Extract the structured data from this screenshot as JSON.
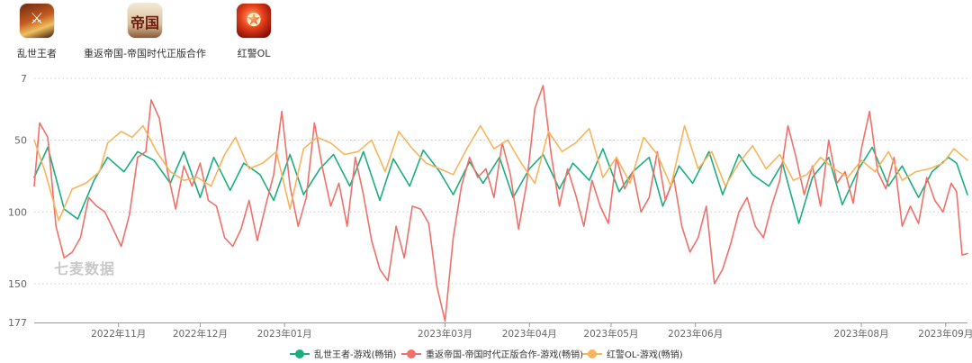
{
  "apps": [
    {
      "name": "乱世王者",
      "icon": "luanshi-wangzhe-app-icon"
    },
    {
      "name": "重返帝国-帝国时代正版合作",
      "icon": "chongfan-diguo-app-icon",
      "icon_text": "帝国"
    },
    {
      "name": "红警OL",
      "icon": "hongjing-ol-app-icon"
    }
  ],
  "watermark": "七麦数据",
  "chart_data": {
    "type": "line",
    "y_inverted": true,
    "ylim": [
      7,
      177
    ],
    "yticks": [
      7,
      50,
      100,
      150,
      177
    ],
    "xlim": [
      "2022-10-01",
      "2023-09-09"
    ],
    "xticks": [
      {
        "date": "2022-11-01",
        "label": "2022年11月"
      },
      {
        "date": "2022-12-01",
        "label": "2022年12月"
      },
      {
        "date": "2023-01-01",
        "label": "2023年01月"
      },
      {
        "date": "2023-03-01",
        "label": "2023年03月"
      },
      {
        "date": "2023-04-01",
        "label": "2023年04月"
      },
      {
        "date": "2023-05-01",
        "label": "2023年05月"
      },
      {
        "date": "2023-06-01",
        "label": "2023年06月"
      },
      {
        "date": "2023-08-01",
        "label": "2023年08月"
      },
      {
        "date": "2023-09-01",
        "label": "2023年09月"
      }
    ],
    "grid": "horizontal-dotted",
    "legend_position": "bottom-center",
    "series": [
      {
        "name": "乱世王者-游戏(畅销)",
        "color": "#1aae7f",
        "points": [
          [
            "2022-10-01",
            76
          ],
          [
            "2022-10-06",
            55
          ],
          [
            "2022-10-12",
            98
          ],
          [
            "2022-10-17",
            105
          ],
          [
            "2022-10-23",
            78
          ],
          [
            "2022-10-28",
            62
          ],
          [
            "2022-11-03",
            72
          ],
          [
            "2022-11-08",
            58
          ],
          [
            "2022-11-14",
            64
          ],
          [
            "2022-11-20",
            80
          ],
          [
            "2022-11-25",
            58
          ],
          [
            "2022-12-01",
            90
          ],
          [
            "2022-12-06",
            62
          ],
          [
            "2022-12-12",
            85
          ],
          [
            "2022-12-17",
            66
          ],
          [
            "2022-12-23",
            74
          ],
          [
            "2022-12-28",
            92
          ],
          [
            "2023-01-03",
            60
          ],
          [
            "2023-01-08",
            88
          ],
          [
            "2023-01-14",
            70
          ],
          [
            "2023-01-19",
            60
          ],
          [
            "2023-01-25",
            82
          ],
          [
            "2023-01-30",
            58
          ],
          [
            "2023-02-05",
            92
          ],
          [
            "2023-02-10",
            63
          ],
          [
            "2023-02-16",
            82
          ],
          [
            "2023-02-21",
            57
          ],
          [
            "2023-02-27",
            72
          ],
          [
            "2023-03-04",
            88
          ],
          [
            "2023-03-10",
            65
          ],
          [
            "2023-03-15",
            80
          ],
          [
            "2023-03-21",
            62
          ],
          [
            "2023-03-26",
            90
          ],
          [
            "2023-04-01",
            70
          ],
          [
            "2023-04-06",
            60
          ],
          [
            "2023-04-12",
            84
          ],
          [
            "2023-04-17",
            66
          ],
          [
            "2023-04-23",
            78
          ],
          [
            "2023-04-28",
            56
          ],
          [
            "2023-05-04",
            86
          ],
          [
            "2023-05-09",
            72
          ],
          [
            "2023-05-15",
            62
          ],
          [
            "2023-05-20",
            96
          ],
          [
            "2023-05-26",
            68
          ],
          [
            "2023-05-31",
            80
          ],
          [
            "2023-06-06",
            58
          ],
          [
            "2023-06-11",
            88
          ],
          [
            "2023-06-17",
            60
          ],
          [
            "2023-06-22",
            74
          ],
          [
            "2023-06-28",
            82
          ],
          [
            "2023-07-03",
            66
          ],
          [
            "2023-07-09",
            108
          ],
          [
            "2023-07-14",
            76
          ],
          [
            "2023-07-20",
            62
          ],
          [
            "2023-07-25",
            95
          ],
          [
            "2023-07-31",
            70
          ],
          [
            "2023-08-05",
            55
          ],
          [
            "2023-08-11",
            82
          ],
          [
            "2023-08-16",
            68
          ],
          [
            "2023-08-22",
            90
          ],
          [
            "2023-08-27",
            72
          ],
          [
            "2023-09-02",
            62
          ],
          [
            "2023-09-05",
            66
          ],
          [
            "2023-09-09",
            88
          ]
        ]
      },
      {
        "name": "重返帝国-帝国时代正版合作-游戏(畅销)",
        "color": "#f0706a",
        "points": [
          [
            "2022-10-01",
            82
          ],
          [
            "2022-10-03",
            38
          ],
          [
            "2022-10-06",
            48
          ],
          [
            "2022-10-09",
            110
          ],
          [
            "2022-10-12",
            132
          ],
          [
            "2022-10-15",
            128
          ],
          [
            "2022-10-18",
            118
          ],
          [
            "2022-10-21",
            90
          ],
          [
            "2022-10-24",
            96
          ],
          [
            "2022-10-27",
            100
          ],
          [
            "2022-10-30",
            112
          ],
          [
            "2022-11-02",
            124
          ],
          [
            "2022-11-05",
            102
          ],
          [
            "2022-11-08",
            62
          ],
          [
            "2022-11-11",
            58
          ],
          [
            "2022-11-13",
            22
          ],
          [
            "2022-11-16",
            35
          ],
          [
            "2022-11-19",
            72
          ],
          [
            "2022-11-22",
            98
          ],
          [
            "2022-11-25",
            68
          ],
          [
            "2022-11-28",
            82
          ],
          [
            "2022-12-01",
            66
          ],
          [
            "2022-12-04",
            92
          ],
          [
            "2022-12-07",
            96
          ],
          [
            "2022-12-10",
            118
          ],
          [
            "2022-12-13",
            124
          ],
          [
            "2022-12-16",
            112
          ],
          [
            "2022-12-19",
            92
          ],
          [
            "2022-12-22",
            120
          ],
          [
            "2022-12-25",
            96
          ],
          [
            "2022-12-28",
            74
          ],
          [
            "2022-12-31",
            30
          ],
          [
            "2023-01-03",
            82
          ],
          [
            "2023-01-06",
            110
          ],
          [
            "2023-01-09",
            90
          ],
          [
            "2023-01-12",
            38
          ],
          [
            "2023-01-15",
            70
          ],
          [
            "2023-01-18",
            96
          ],
          [
            "2023-01-21",
            80
          ],
          [
            "2023-01-24",
            110
          ],
          [
            "2023-01-27",
            62
          ],
          [
            "2023-01-30",
            88
          ],
          [
            "2023-02-02",
            120
          ],
          [
            "2023-02-05",
            140
          ],
          [
            "2023-02-08",
            148
          ],
          [
            "2023-02-11",
            110
          ],
          [
            "2023-02-14",
            132
          ],
          [
            "2023-02-17",
            96
          ],
          [
            "2023-02-20",
            98
          ],
          [
            "2023-02-23",
            108
          ],
          [
            "2023-02-26",
            152
          ],
          [
            "2023-03-01",
            176
          ],
          [
            "2023-03-04",
            118
          ],
          [
            "2023-03-07",
            82
          ],
          [
            "2023-03-10",
            62
          ],
          [
            "2023-03-13",
            76
          ],
          [
            "2023-03-16",
            70
          ],
          [
            "2023-03-19",
            90
          ],
          [
            "2023-03-22",
            52
          ],
          [
            "2023-03-25",
            74
          ],
          [
            "2023-03-28",
            112
          ],
          [
            "2023-03-31",
            80
          ],
          [
            "2023-04-03",
            28
          ],
          [
            "2023-04-06",
            12
          ],
          [
            "2023-04-09",
            60
          ],
          [
            "2023-04-12",
            96
          ],
          [
            "2023-04-15",
            70
          ],
          [
            "2023-04-18",
            88
          ],
          [
            "2023-04-21",
            110
          ],
          [
            "2023-04-24",
            78
          ],
          [
            "2023-04-27",
            96
          ],
          [
            "2023-04-30",
            108
          ],
          [
            "2023-05-03",
            62
          ],
          [
            "2023-05-06",
            84
          ],
          [
            "2023-05-09",
            72
          ],
          [
            "2023-05-12",
            100
          ],
          [
            "2023-05-15",
            90
          ],
          [
            "2023-05-18",
            58
          ],
          [
            "2023-05-21",
            92
          ],
          [
            "2023-05-24",
            76
          ],
          [
            "2023-05-27",
            110
          ],
          [
            "2023-05-30",
            128
          ],
          [
            "2023-06-02",
            118
          ],
          [
            "2023-06-05",
            96
          ],
          [
            "2023-06-08",
            150
          ],
          [
            "2023-06-11",
            140
          ],
          [
            "2023-06-14",
            122
          ],
          [
            "2023-06-17",
            100
          ],
          [
            "2023-06-20",
            90
          ],
          [
            "2023-06-23",
            110
          ],
          [
            "2023-06-26",
            118
          ],
          [
            "2023-06-29",
            96
          ],
          [
            "2023-07-02",
            78
          ],
          [
            "2023-07-05",
            40
          ],
          [
            "2023-07-08",
            62
          ],
          [
            "2023-07-11",
            88
          ],
          [
            "2023-07-14",
            68
          ],
          [
            "2023-07-17",
            96
          ],
          [
            "2023-07-20",
            50
          ],
          [
            "2023-07-23",
            80
          ],
          [
            "2023-07-26",
            72
          ],
          [
            "2023-07-29",
            94
          ],
          [
            "2023-08-01",
            56
          ],
          [
            "2023-08-04",
            30
          ],
          [
            "2023-08-07",
            72
          ],
          [
            "2023-08-10",
            84
          ],
          [
            "2023-08-13",
            62
          ],
          [
            "2023-08-16",
            110
          ],
          [
            "2023-08-19",
            96
          ],
          [
            "2023-08-22",
            108
          ],
          [
            "2023-08-25",
            76
          ],
          [
            "2023-08-28",
            92
          ],
          [
            "2023-08-31",
            100
          ],
          [
            "2023-09-03",
            80
          ],
          [
            "2023-09-05",
            86
          ],
          [
            "2023-09-07",
            130
          ],
          [
            "2023-09-09",
            129
          ]
        ]
      },
      {
        "name": "红警OL-游戏(畅销)",
        "color": "#f8b45c",
        "points": [
          [
            "2022-10-01",
            50
          ],
          [
            "2022-10-05",
            72
          ],
          [
            "2022-10-10",
            106
          ],
          [
            "2022-10-15",
            84
          ],
          [
            "2022-10-20",
            80
          ],
          [
            "2022-10-25",
            72
          ],
          [
            "2022-10-28",
            52
          ],
          [
            "2022-11-02",
            44
          ],
          [
            "2022-11-06",
            48
          ],
          [
            "2022-11-10",
            40
          ],
          [
            "2022-11-15",
            58
          ],
          [
            "2022-11-20",
            72
          ],
          [
            "2022-11-25",
            78
          ],
          [
            "2022-11-30",
            76
          ],
          [
            "2022-12-05",
            82
          ],
          [
            "2022-12-10",
            60
          ],
          [
            "2022-12-14",
            48
          ],
          [
            "2022-12-19",
            70
          ],
          [
            "2022-12-24",
            66
          ],
          [
            "2022-12-29",
            58
          ],
          [
            "2023-01-03",
            98
          ],
          [
            "2023-01-08",
            56
          ],
          [
            "2023-01-13",
            48
          ],
          [
            "2023-01-18",
            52
          ],
          [
            "2023-01-23",
            60
          ],
          [
            "2023-01-28",
            58
          ],
          [
            "2023-02-02",
            50
          ],
          [
            "2023-02-07",
            72
          ],
          [
            "2023-02-12",
            44
          ],
          [
            "2023-02-17",
            56
          ],
          [
            "2023-02-22",
            66
          ],
          [
            "2023-02-27",
            70
          ],
          [
            "2023-03-04",
            74
          ],
          [
            "2023-03-09",
            56
          ],
          [
            "2023-03-14",
            40
          ],
          [
            "2023-03-19",
            56
          ],
          [
            "2023-03-24",
            50
          ],
          [
            "2023-03-29",
            66
          ],
          [
            "2023-04-03",
            80
          ],
          [
            "2023-04-08",
            44
          ],
          [
            "2023-04-13",
            58
          ],
          [
            "2023-04-18",
            52
          ],
          [
            "2023-04-23",
            42
          ],
          [
            "2023-04-28",
            76
          ],
          [
            "2023-05-03",
            62
          ],
          [
            "2023-05-08",
            80
          ],
          [
            "2023-05-13",
            48
          ],
          [
            "2023-05-18",
            60
          ],
          [
            "2023-05-23",
            82
          ],
          [
            "2023-05-28",
            40
          ],
          [
            "2023-06-02",
            70
          ],
          [
            "2023-06-07",
            58
          ],
          [
            "2023-06-12",
            82
          ],
          [
            "2023-06-17",
            66
          ],
          [
            "2023-06-22",
            54
          ],
          [
            "2023-06-27",
            70
          ],
          [
            "2023-07-02",
            60
          ],
          [
            "2023-07-07",
            78
          ],
          [
            "2023-07-12",
            74
          ],
          [
            "2023-07-17",
            62
          ],
          [
            "2023-07-22",
            70
          ],
          [
            "2023-07-27",
            76
          ],
          [
            "2023-08-01",
            64
          ],
          [
            "2023-08-06",
            72
          ],
          [
            "2023-08-11",
            58
          ],
          [
            "2023-08-16",
            78
          ],
          [
            "2023-08-21",
            72
          ],
          [
            "2023-08-26",
            70
          ],
          [
            "2023-08-31",
            66
          ],
          [
            "2023-09-04",
            56
          ],
          [
            "2023-09-09",
            64
          ]
        ]
      }
    ]
  }
}
